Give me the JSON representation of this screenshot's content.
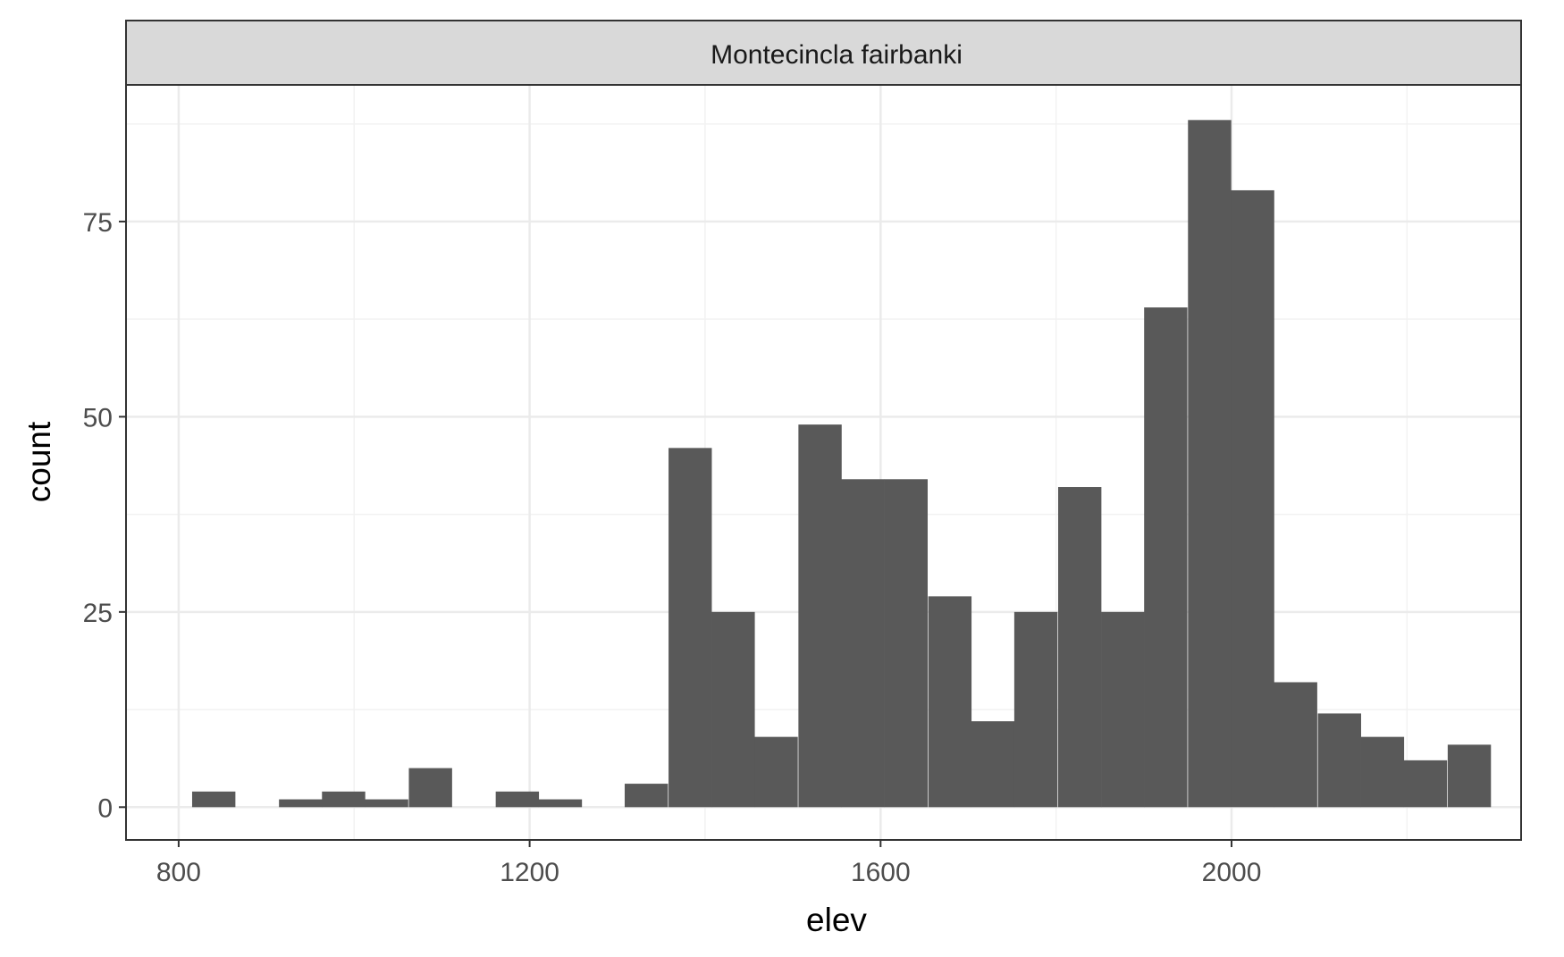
{
  "chart_data": {
    "type": "bar",
    "panel_title": "Montecincla fairbanki",
    "xlabel": "elev",
    "ylabel": "count",
    "xlim": [
      740,
      2330
    ],
    "ylim": [
      -4.2,
      92.5
    ],
    "xticks": [
      800,
      1200,
      1600,
      2000
    ],
    "xtick_labels": [
      "800",
      "1200",
      "1600",
      "2000"
    ],
    "yticks": [
      0,
      25,
      50,
      75
    ],
    "ytick_labels": [
      "0",
      "25",
      "50",
      "75"
    ],
    "bin_width": 49.3,
    "bins": [
      {
        "x": 840,
        "count": 2
      },
      {
        "x": 939,
        "count": 1
      },
      {
        "x": 988,
        "count": 2
      },
      {
        "x": 1037,
        "count": 1
      },
      {
        "x": 1087,
        "count": 5
      },
      {
        "x": 1186,
        "count": 2
      },
      {
        "x": 1235,
        "count": 1
      },
      {
        "x": 1333,
        "count": 3
      },
      {
        "x": 1383,
        "count": 46
      },
      {
        "x": 1432,
        "count": 25
      },
      {
        "x": 1481,
        "count": 9
      },
      {
        "x": 1531,
        "count": 49
      },
      {
        "x": 1580,
        "count": 42
      },
      {
        "x": 1629,
        "count": 42
      },
      {
        "x": 1679,
        "count": 27
      },
      {
        "x": 1728,
        "count": 11
      },
      {
        "x": 1777,
        "count": 25
      },
      {
        "x": 1827,
        "count": 41
      },
      {
        "x": 1876,
        "count": 25
      },
      {
        "x": 1925,
        "count": 64
      },
      {
        "x": 1975,
        "count": 88
      },
      {
        "x": 2024,
        "count": 79
      },
      {
        "x": 2073,
        "count": 16
      },
      {
        "x": 2123,
        "count": 12
      },
      {
        "x": 2172,
        "count": 9
      },
      {
        "x": 2221,
        "count": 6
      },
      {
        "x": 2271,
        "count": 8
      }
    ],
    "bar_color": "#595959",
    "grid": true,
    "legend": "none"
  }
}
